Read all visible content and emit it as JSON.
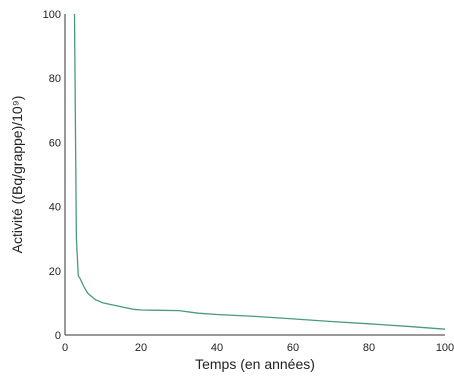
{
  "chart_data": {
    "type": "line",
    "xlabel": "Temps (en années)",
    "ylabel": "Activité ((Bq/grappe)/10⁹)",
    "xlim": [
      0,
      100
    ],
    "ylim": [
      0,
      100
    ],
    "xticks": [
      0,
      20,
      40,
      60,
      80,
      100
    ],
    "yticks": [
      0,
      20,
      40,
      60,
      80,
      100
    ],
    "x_tick_labels": [
      "0",
      "20",
      "40",
      "60",
      "80",
      "100"
    ],
    "y_tick_labels": [
      "0",
      "20",
      "40",
      "60",
      "80",
      "100"
    ],
    "grid": false,
    "line_color": "#4a9a7a",
    "axis_color": "#333333",
    "series": [
      {
        "x": [
          2.5,
          2.7,
          3,
          3.5,
          4,
          5,
          6,
          7,
          8,
          10,
          12,
          14,
          16,
          18,
          20,
          25,
          30,
          35,
          40,
          50,
          60,
          70,
          80,
          90,
          100
        ],
        "y": [
          100,
          70,
          30,
          18.5,
          17.5,
          15,
          13,
          12,
          11,
          10,
          9.5,
          9,
          8.5,
          8,
          7.8,
          7.7,
          7.6,
          6.8,
          6.4,
          5.8,
          5,
          4.2,
          3.5,
          2.7,
          1.8
        ]
      }
    ]
  }
}
